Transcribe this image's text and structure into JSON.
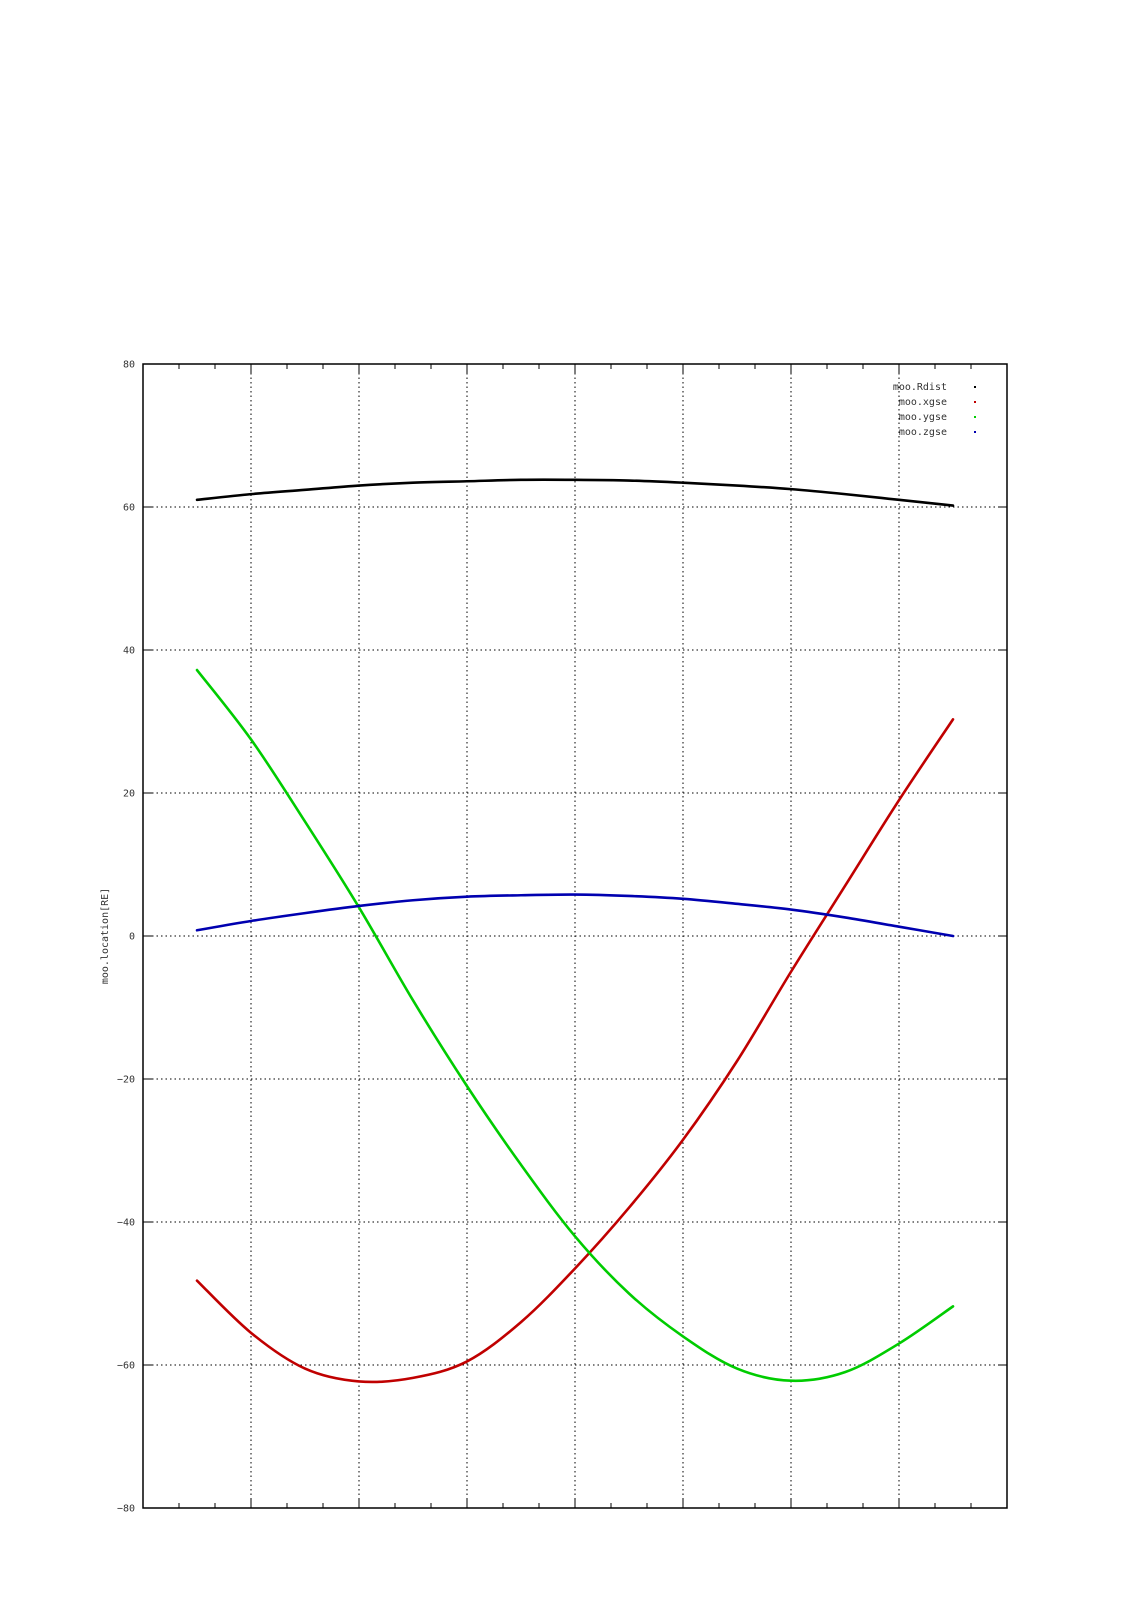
{
  "chart_data": {
    "type": "line",
    "title": "",
    "xlabel": "",
    "ylabel": "moo.location[RE]",
    "ylim": [
      -80,
      80
    ],
    "xlim": [
      0,
      8
    ],
    "yticks": [
      -80,
      -60,
      -40,
      -20,
      0,
      20,
      40,
      60,
      80
    ],
    "xgrid": [
      0,
      1,
      2,
      3,
      4,
      5,
      6,
      7,
      8
    ],
    "grid": true,
    "legend_position": "top-right",
    "x": [
      0.5,
      1.0,
      1.5,
      2.0,
      2.5,
      3.0,
      3.5,
      4.0,
      4.5,
      5.0,
      5.5,
      6.0,
      6.5,
      7.0,
      7.5
    ],
    "series": [
      {
        "name": "moo.Rdist",
        "color": "#000000",
        "values": [
          61.0,
          61.8,
          62.4,
          63.0,
          63.4,
          63.6,
          63.8,
          63.8,
          63.7,
          63.4,
          63.0,
          62.5,
          61.8,
          61.0,
          60.2
        ]
      },
      {
        "name": "moo.xgse",
        "color": "#c00000",
        "values": [
          -48.2,
          -55.5,
          -60.5,
          -62.3,
          -61.8,
          -59.5,
          -54.0,
          -46.5,
          -38.0,
          -28.5,
          -17.5,
          -5.0,
          7.0,
          19.0,
          30.3
        ]
      },
      {
        "name": "moo.ygse",
        "color": "#00cc00",
        "values": [
          37.2,
          27.5,
          16.0,
          4.0,
          -9.0,
          -21.0,
          -32.0,
          -42.0,
          -50.0,
          -56.0,
          -60.5,
          -62.2,
          -61.0,
          -57.0,
          -51.8
        ]
      },
      {
        "name": "moo.zgse",
        "color": "#0000b0",
        "values": [
          0.8,
          2.1,
          3.2,
          4.2,
          5.0,
          5.5,
          5.7,
          5.8,
          5.6,
          5.2,
          4.5,
          3.7,
          2.6,
          1.3,
          0.0
        ]
      }
    ]
  }
}
